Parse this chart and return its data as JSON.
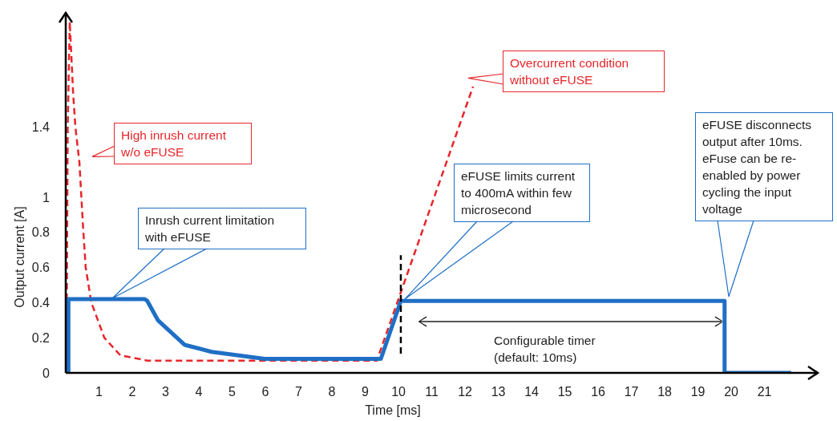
{
  "chart_data": {
    "type": "line",
    "xlabel": "Time [ms]",
    "ylabel": "Output current [A]",
    "xlim": [
      0,
      22.6
    ],
    "xticks": [
      1,
      2,
      3,
      4,
      5,
      6,
      7,
      8,
      9,
      10,
      11,
      12,
      13,
      14,
      15,
      16,
      17,
      18,
      19,
      20,
      21
    ],
    "ylim": [
      0,
      2.05
    ],
    "yticks": [
      0,
      0.2,
      0.4,
      0.6,
      0.8,
      1,
      1.4
    ],
    "grid": false,
    "legend": false,
    "marker": "none",
    "series": [
      {
        "color": "#e8262a",
        "line_style": "dashed",
        "x": [
          0.02,
          0.06,
          0.12,
          0.22,
          0.29,
          0.41,
          0.53,
          0.6,
          0.77,
          1.16,
          1.64,
          2.45,
          7.1,
          9.35,
          12.24
        ],
        "values": [
          0,
          1.4,
          2.0,
          1.6,
          1.4,
          1.2,
          0.8,
          0.6,
          0.4,
          0.2,
          0.1,
          0.07,
          0.07,
          0.07,
          1.63
        ]
      },
      {
        "color": "#1f6fc5",
        "line_style": "solid",
        "x": [
          0.08,
          0.08,
          2.37,
          2.45,
          2.77,
          3.57,
          4.38,
          5.98,
          7.6,
          9.47,
          10.07,
          19.8,
          19.8,
          21.8
        ],
        "values": [
          0,
          0.42,
          0.42,
          0.41,
          0.3,
          0.16,
          0.12,
          0.08,
          0.08,
          0.08,
          0.41,
          0.41,
          0,
          0
        ]
      },
      {
        "color": "#000000",
        "line_style": "dashed",
        "x": [
          10.07,
          10.07
        ],
        "values": [
          0.11,
          0.67
        ]
      }
    ],
    "annotations": [
      "High inrush current w/o eFUSE",
      "Inrush current limitation with eFUSE",
      "Overcurrent condition without eFUSE",
      "eFUSE limits current to 400mA within few microsecond",
      "eFUSE disconnects output after 10ms. eFuse can be re-enabled by power cycling the input voltage",
      "Configurable timer (default: 10ms)"
    ]
  }
}
